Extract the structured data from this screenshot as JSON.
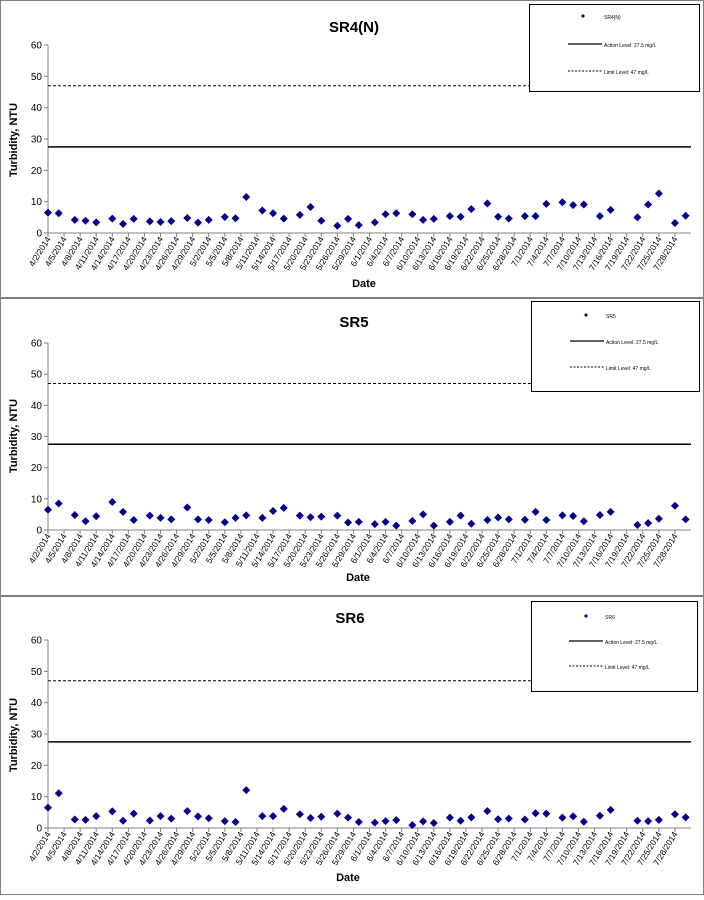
{
  "chart_data": [
    {
      "type": "scatter",
      "title": "SR4(N)",
      "xlabel": "Date",
      "ylabel": "Turbidity, NTU",
      "ylim": [
        0,
        60
      ],
      "yticks": [
        0,
        10,
        20,
        30,
        40,
        50,
        60
      ],
      "grid": false,
      "legend_position": "top-right",
      "xtick_labels": [
        "4/2/2014",
        "4/5/2014",
        "4/8/2014",
        "4/11/2014",
        "4/14/2014",
        "4/17/2014",
        "4/20/2014",
        "4/23/2014",
        "4/26/2014",
        "4/29/2014",
        "5/2/2014",
        "5/5/2014",
        "5/8/2014",
        "5/11/2014",
        "5/14/2014",
        "5/17/2014",
        "5/20/2014",
        "5/23/2014",
        "5/26/2014",
        "5/29/2014",
        "6/1/2014",
        "6/4/2014",
        "6/7/2014",
        "6/10/2014",
        "6/13/2014",
        "6/16/2014",
        "6/19/2014",
        "6/22/2014",
        "6/25/2014",
        "6/28/2014",
        "7/1/2014",
        "7/4/2014",
        "7/7/2014",
        "7/10/2014",
        "7/13/2014",
        "7/16/2014",
        "7/19/2014",
        "7/22/2014",
        "7/25/2014",
        "7/28/2014"
      ],
      "series": [
        {
          "name": "SR4(N)",
          "color": "#00008b",
          "marker": "diamond",
          "x": [
            "4/2/2014",
            "4/4/2014",
            "4/7/2014",
            "4/9/2014",
            "4/11/2014",
            "4/14/2014",
            "4/16/2014",
            "4/18/2014",
            "4/21/2014",
            "4/23/2014",
            "4/25/2014",
            "4/28/2014",
            "4/30/2014",
            "5/2/2014",
            "5/5/2014",
            "5/7/2014",
            "5/9/2014",
            "5/12/2014",
            "5/14/2014",
            "5/16/2014",
            "5/19/2014",
            "5/21/2014",
            "5/23/2014",
            "5/26/2014",
            "5/28/2014",
            "5/30/2014",
            "6/2/2014",
            "6/4/2014",
            "6/6/2014",
            "6/9/2014",
            "6/11/2014",
            "6/13/2014",
            "6/16/2014",
            "6/18/2014",
            "6/20/2014",
            "6/23/2014",
            "6/25/2014",
            "6/27/2014",
            "6/30/2014",
            "7/2/2014",
            "7/4/2014",
            "7/7/2014",
            "7/9/2014",
            "7/11/2014",
            "7/14/2014",
            "7/16/2014",
            "7/21/2014",
            "7/23/2014",
            "7/25/2014",
            "7/28/2014",
            "7/30/2014"
          ],
          "y": [
            6.5,
            6.3,
            4.2,
            3.9,
            3.4,
            4.6,
            2.9,
            4.5,
            3.7,
            3.5,
            3.8,
            4.8,
            3.3,
            4.2,
            5.1,
            4.7,
            11.5,
            7.2,
            6.3,
            4.6,
            5.8,
            8.3,
            3.9,
            2.3,
            4.5,
            2.5,
            3.4,
            6.0,
            6.3,
            6.0,
            4.2,
            4.5,
            5.4,
            5.2,
            7.6,
            9.4,
            5.2,
            4.6,
            5.4,
            5.4,
            9.3,
            9.8,
            8.9,
            9.1,
            5.4,
            7.4,
            5.0,
            9.1,
            12.6,
            3.2,
            5.5
          ]
        },
        {
          "name": "Action Level: 27.5 mg/L",
          "y": 27.5,
          "style": "solid"
        },
        {
          "name": "Limit Level: 47 mg/L",
          "y": 47,
          "style": "dashed"
        }
      ]
    },
    {
      "type": "scatter",
      "title": "SR5",
      "xlabel": "Date",
      "ylabel": "Turbidity, NTU",
      "ylim": [
        0,
        60
      ],
      "yticks": [
        0,
        10,
        20,
        30,
        40,
        50,
        60
      ],
      "grid": false,
      "legend_position": "top-right",
      "xtick_labels": [
        "4/2/2014",
        "4/5/2014",
        "4/8/2014",
        "4/11/2014",
        "4/14/2014",
        "4/17/2014",
        "4/20/2014",
        "4/23/2014",
        "4/26/2014",
        "4/29/2014",
        "5/2/2014",
        "5/5/2014",
        "5/8/2014",
        "5/11/2014",
        "5/14/2014",
        "5/17/2014",
        "5/20/2014",
        "5/23/2014",
        "5/26/2014",
        "5/29/2014",
        "6/1/2014",
        "6/4/2014",
        "6/7/2014",
        "6/10/2014",
        "6/13/2014",
        "6/16/2014",
        "6/19/2014",
        "6/22/2014",
        "6/25/2014",
        "6/28/2014",
        "7/1/2014",
        "7/4/2014",
        "7/7/2014",
        "7/10/2014",
        "7/13/2014",
        "7/16/2014",
        "7/19/2014",
        "7/22/2014",
        "7/25/2014",
        "7/28/2014"
      ],
      "series": [
        {
          "name": "SR5",
          "color": "#00008b",
          "marker": "diamond",
          "x": [
            "4/2/2014",
            "4/4/2014",
            "4/7/2014",
            "4/9/2014",
            "4/11/2014",
            "4/14/2014",
            "4/16/2014",
            "4/18/2014",
            "4/21/2014",
            "4/23/2014",
            "4/25/2014",
            "4/28/2014",
            "4/30/2014",
            "5/2/2014",
            "5/5/2014",
            "5/7/2014",
            "5/9/2014",
            "5/12/2014",
            "5/14/2014",
            "5/16/2014",
            "5/19/2014",
            "5/21/2014",
            "5/23/2014",
            "5/26/2014",
            "5/28/2014",
            "5/30/2014",
            "6/2/2014",
            "6/4/2014",
            "6/6/2014",
            "6/9/2014",
            "6/11/2014",
            "6/13/2014",
            "6/16/2014",
            "6/18/2014",
            "6/20/2014",
            "6/23/2014",
            "6/25/2014",
            "6/27/2014",
            "6/30/2014",
            "7/2/2014",
            "7/4/2014",
            "7/7/2014",
            "7/9/2014",
            "7/11/2014",
            "7/14/2014",
            "7/16/2014",
            "7/21/2014",
            "7/23/2014",
            "7/25/2014",
            "7/28/2014",
            "7/30/2014"
          ],
          "y": [
            6.5,
            8.5,
            4.8,
            2.8,
            4.4,
            9.0,
            5.8,
            3.2,
            4.6,
            3.9,
            3.4,
            7.2,
            3.4,
            3.2,
            2.5,
            3.9,
            4.7,
            3.9,
            6.1,
            7.1,
            4.6,
            4.1,
            4.3,
            4.6,
            2.4,
            2.6,
            1.9,
            2.6,
            1.4,
            2.9,
            5.0,
            1.4,
            2.6,
            4.6,
            2.0,
            3.2,
            4.0,
            3.4,
            3.3,
            5.8,
            3.2,
            4.7,
            4.5,
            2.8,
            4.8,
            5.8,
            1.6,
            2.2,
            3.6,
            7.8,
            3.4
          ]
        },
        {
          "name": "Action Level: 27.5 mg/L",
          "y": 27.5,
          "style": "solid"
        },
        {
          "name": "Limit Level: 47 mg/L",
          "y": 47,
          "style": "dashed"
        }
      ]
    },
    {
      "type": "scatter",
      "title": "SR6",
      "xlabel": "Date",
      "ylabel": "Turbidity, NTU",
      "ylim": [
        0,
        60
      ],
      "yticks": [
        0,
        10,
        20,
        30,
        40,
        50,
        60
      ],
      "grid": false,
      "legend_position": "top-right",
      "xtick_labels": [
        "4/2/2014",
        "4/5/2014",
        "4/8/2014",
        "4/11/2014",
        "4/14/2014",
        "4/17/2014",
        "4/20/2014",
        "4/23/2014",
        "4/26/2014",
        "4/29/2014",
        "5/2/2014",
        "5/5/2014",
        "5/8/2014",
        "5/11/2014",
        "5/14/2014",
        "5/17/2014",
        "5/20/2014",
        "5/23/2014",
        "5/26/2014",
        "5/29/2014",
        "6/1/2014",
        "6/4/2014",
        "6/7/2014",
        "6/10/2014",
        "6/13/2014",
        "6/16/2014",
        "6/19/2014",
        "6/22/2014",
        "6/25/2014",
        "6/28/2014",
        "7/1/2014",
        "7/4/2014",
        "7/7/2014",
        "7/10/2014",
        "7/13/2014",
        "7/16/2014",
        "7/19/2014",
        "7/22/2014",
        "7/25/2014",
        "7/28/2014"
      ],
      "series": [
        {
          "name": "SR6",
          "color": "#00008b",
          "marker": "diamond",
          "x": [
            "4/2/2014",
            "4/4/2014",
            "4/7/2014",
            "4/9/2014",
            "4/11/2014",
            "4/14/2014",
            "4/16/2014",
            "4/18/2014",
            "4/21/2014",
            "4/23/2014",
            "4/25/2014",
            "4/28/2014",
            "4/30/2014",
            "5/2/2014",
            "5/5/2014",
            "5/7/2014",
            "5/9/2014",
            "5/12/2014",
            "5/14/2014",
            "5/16/2014",
            "5/19/2014",
            "5/21/2014",
            "5/23/2014",
            "5/26/2014",
            "5/28/2014",
            "5/30/2014",
            "6/2/2014",
            "6/4/2014",
            "6/6/2014",
            "6/9/2014",
            "6/11/2014",
            "6/13/2014",
            "6/16/2014",
            "6/18/2014",
            "6/20/2014",
            "6/23/2014",
            "6/25/2014",
            "6/27/2014",
            "6/30/2014",
            "7/2/2014",
            "7/4/2014",
            "7/7/2014",
            "7/9/2014",
            "7/11/2014",
            "7/14/2014",
            "7/16/2014",
            "7/21/2014",
            "7/23/2014",
            "7/25/2014",
            "7/28/2014",
            "7/30/2014"
          ],
          "y": [
            6.5,
            11.1,
            2.7,
            2.6,
            3.8,
            5.3,
            2.3,
            4.6,
            2.4,
            3.8,
            3.0,
            5.4,
            3.7,
            3.1,
            2.2,
            1.9,
            12.1,
            3.8,
            3.8,
            6.1,
            4.4,
            3.2,
            3.6,
            4.6,
            3.3,
            1.9,
            1.7,
            2.2,
            2.5,
            0.9,
            2.1,
            1.6,
            3.3,
            2.3,
            3.4,
            5.4,
            2.8,
            3.0,
            2.7,
            4.7,
            4.6,
            3.3,
            3.7,
            2.0,
            3.9,
            5.8,
            2.3,
            2.2,
            2.6,
            4.4,
            3.4
          ]
        },
        {
          "name": "Action Level: 27.5 mg/L",
          "y": 27.5,
          "style": "solid"
        },
        {
          "name": "Limit Level: 47 mg/L",
          "y": 47,
          "style": "dashed"
        }
      ]
    }
  ]
}
